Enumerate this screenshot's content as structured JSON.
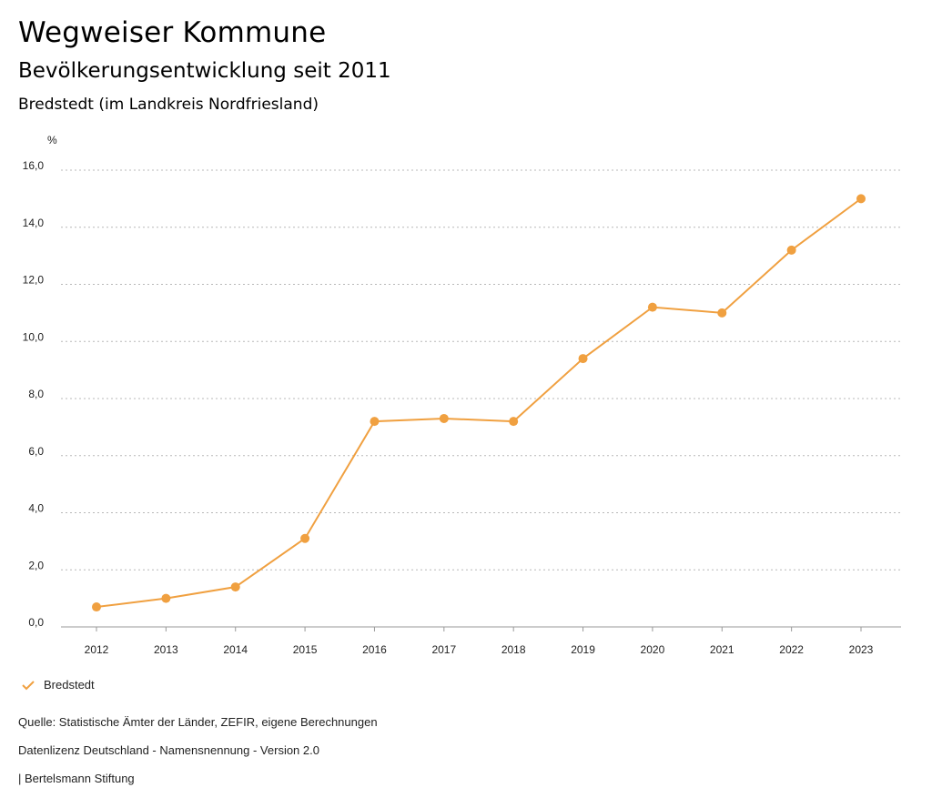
{
  "header": {
    "title": "Wegweiser Kommune",
    "subtitle": "Bevölkerungsentwicklung seit 2011",
    "region": "Bredstedt (im Landkreis Nordfriesland)"
  },
  "chart_data": {
    "type": "line",
    "ylabel": "%",
    "ylim": [
      0,
      16
    ],
    "yticks": [
      "0,0",
      "2,0",
      "4,0",
      "6,0",
      "8,0",
      "10,0",
      "12,0",
      "14,0",
      "16,0"
    ],
    "grid": true,
    "legend_position": "bottom-left",
    "categories": [
      "2012",
      "2013",
      "2014",
      "2015",
      "2016",
      "2017",
      "2018",
      "2019",
      "2020",
      "2021",
      "2022",
      "2023"
    ],
    "series": [
      {
        "name": "Bredstedt",
        "color": "#f0a040",
        "values": [
          0.7,
          1.0,
          1.4,
          3.1,
          7.2,
          7.3,
          7.2,
          9.4,
          11.2,
          11.0,
          13.2,
          15.0
        ]
      }
    ]
  },
  "legend": {
    "label": "Bredstedt"
  },
  "footer": {
    "source": "Quelle: Statistische Ämter der Länder, ZEFIR, eigene Berechnungen",
    "license": "Datenlizenz Deutschland - Namensnennung - Version 2.0",
    "publisher": "| Bertelsmann Stiftung"
  }
}
